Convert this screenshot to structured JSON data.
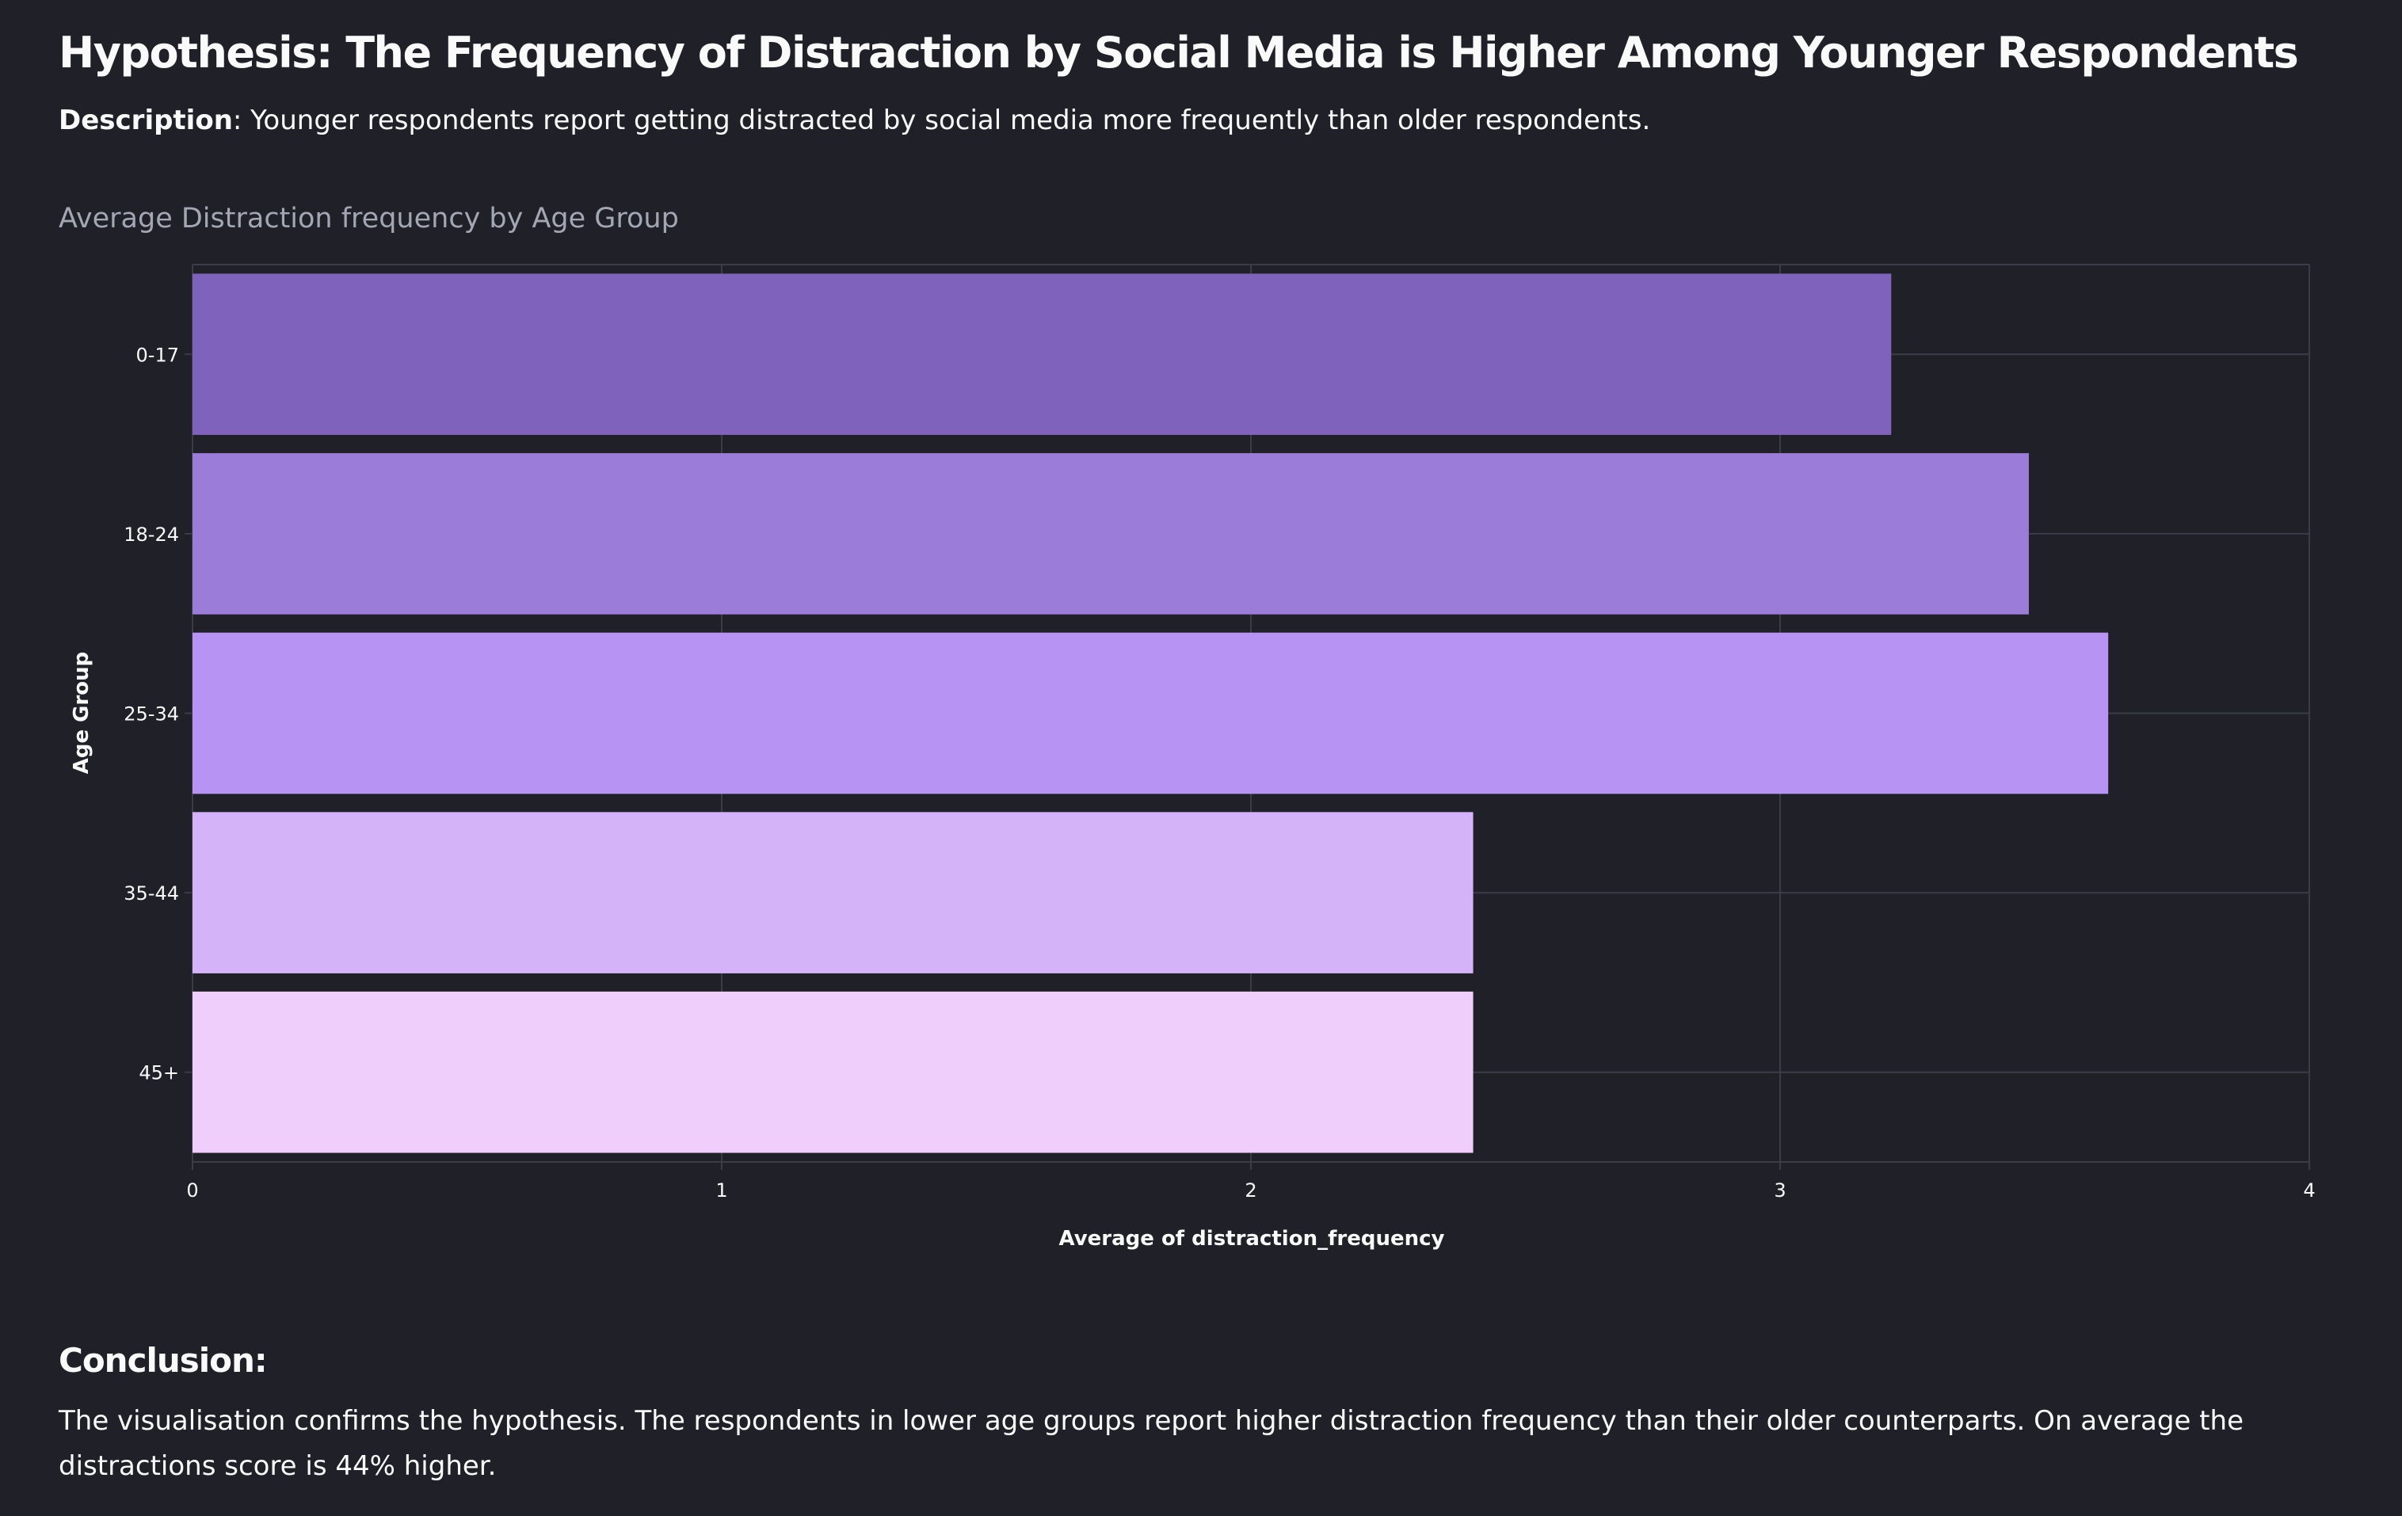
{
  "header": {
    "title": "Hypothesis: The Frequency of Distraction by Social Media is Higher Among Younger Respondents",
    "description_label": "Description",
    "description_text": ": Younger respondents report getting distracted by social media more frequently than older respondents."
  },
  "chart_data": {
    "type": "bar",
    "orientation": "horizontal",
    "title": "Average Distraction frequency by Age Group",
    "xlabel": "Average of distraction_frequency",
    "ylabel": "Age Group",
    "categories": [
      "0-17",
      "18-24",
      "25-34",
      "35-44",
      "45+"
    ],
    "values": [
      3.21,
      3.47,
      3.62,
      2.42,
      2.42
    ],
    "colors": [
      "#7f62bb",
      "#9b7cd8",
      "#b794f4",
      "#d5b3f8",
      "#f0cefb"
    ],
    "xlim": [
      0,
      4
    ],
    "xticks": [
      "0",
      "1",
      "2",
      "3",
      "4"
    ],
    "grid": true
  },
  "conclusion": {
    "heading": "Conclusion:",
    "text": "The visualisation confirms the hypothesis. The respondents in lower age groups report higher distraction frequency than their older counterparts. On average the distractions score is 44% higher."
  },
  "theme": {
    "background": "#1f2028",
    "gridline": "#3a3c47",
    "text": "#fafafa",
    "muted_text": "#a3a6b3"
  }
}
